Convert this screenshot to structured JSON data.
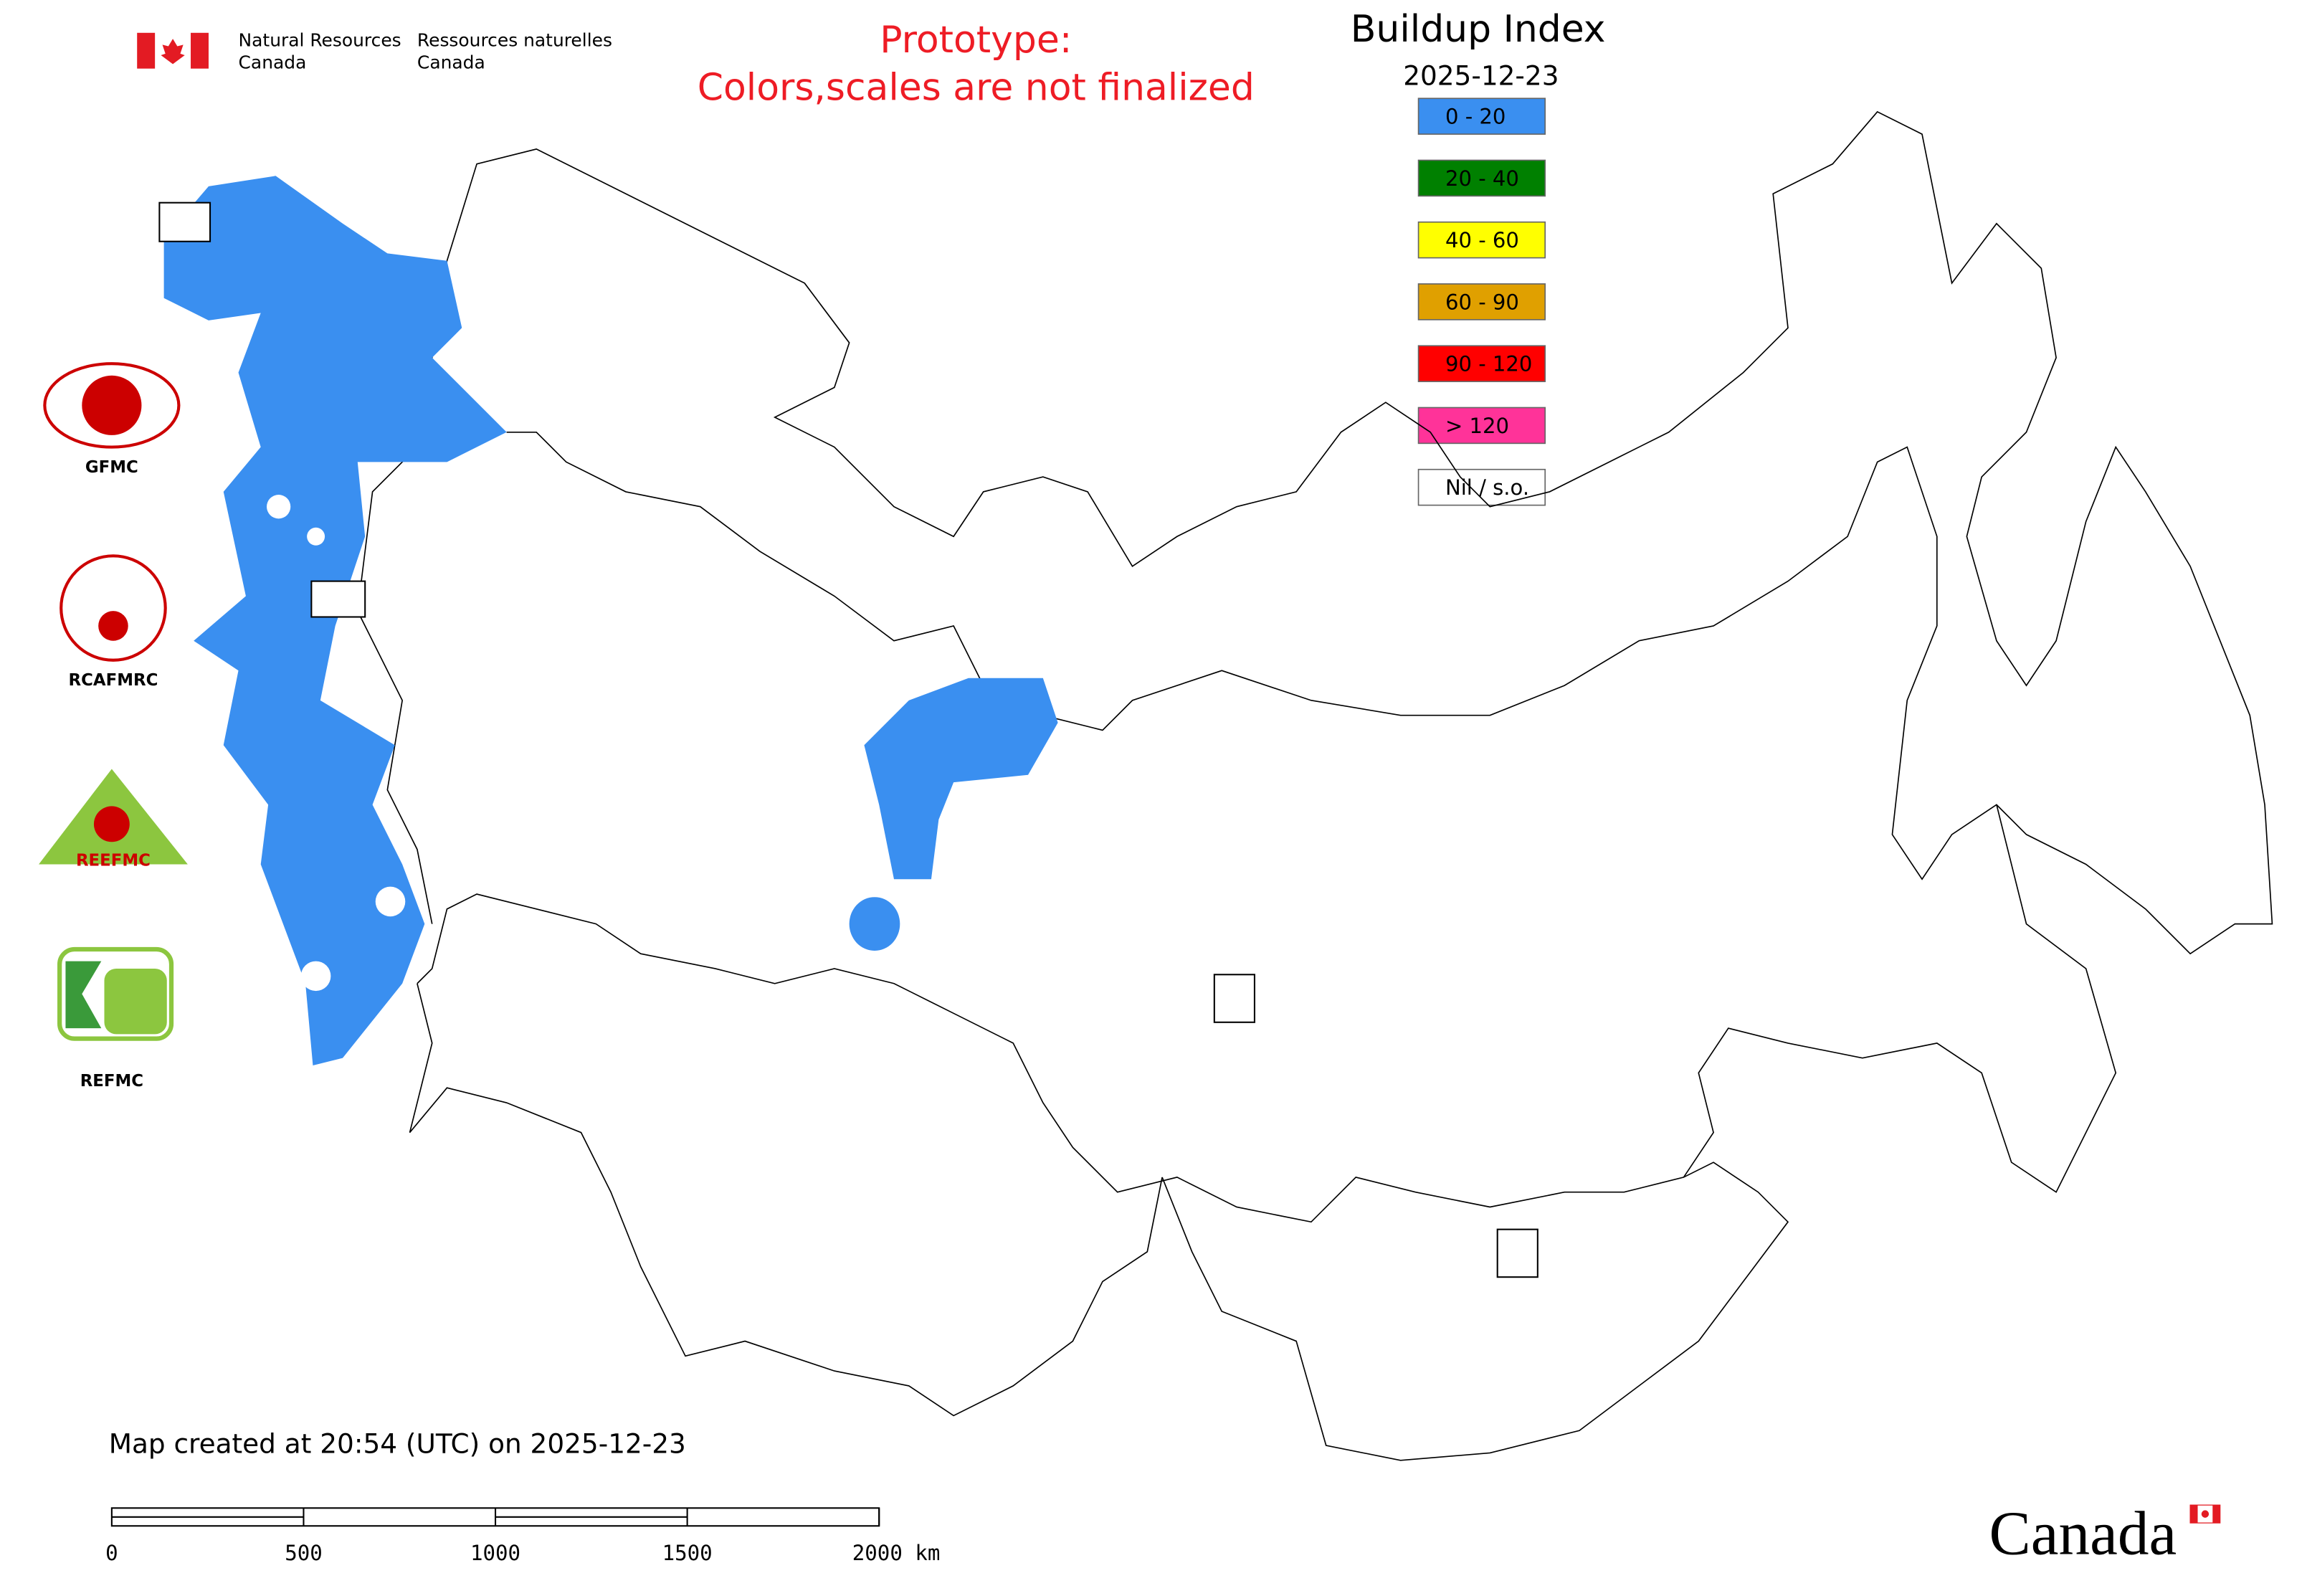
{
  "header": {
    "agency_en_1": "Natural Resources",
    "agency_en_2": "Canada",
    "agency_fr_1": "Ressources naturelles",
    "agency_fr_2": "Canada"
  },
  "notice": {
    "line1": "Prototype:",
    "line2": "Colors,scales are not finalized"
  },
  "legend": {
    "title": "Buildup Index",
    "date": "2025-12-23",
    "items": [
      {
        "label": "0 - 20",
        "color": "#3a8ff0"
      },
      {
        "label": "20 - 40",
        "color": "#008000"
      },
      {
        "label": "40 - 60",
        "color": "#ffff00"
      },
      {
        "label": "60 - 90",
        "color": "#e0a000"
      },
      {
        "label": "90 - 120",
        "color": "#ff0000"
      },
      {
        "label": "> 120",
        "color": "#ff3399"
      },
      {
        "label": "Nil / s.o.",
        "color": "#ffffff"
      }
    ]
  },
  "logos": [
    {
      "label": "GFMC"
    },
    {
      "label": "RCAFMRC"
    },
    {
      "label": "REEFMC"
    },
    {
      "label": "REFMC"
    }
  ],
  "footer": {
    "created": "Map created at 20:54 (UTC) on 2025-12-23",
    "scale_labels": [
      "0",
      "500",
      "1000",
      "1500",
      "2000 km"
    ],
    "wordmark": "Canada"
  }
}
